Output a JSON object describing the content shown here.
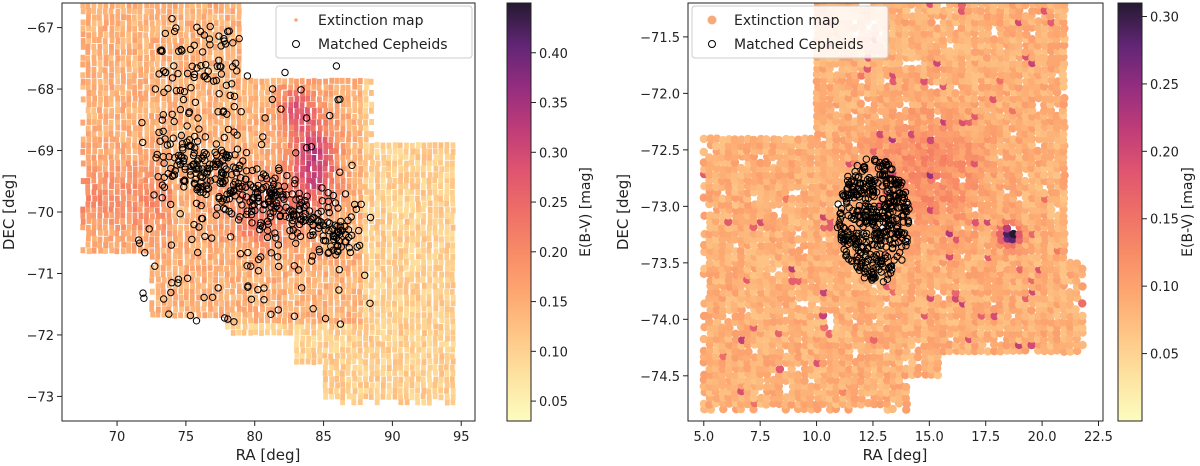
{
  "chart_data": [
    {
      "type": "scatter",
      "panel": "left",
      "xlabel": "RA [deg]",
      "ylabel": "DEC [deg]",
      "xlim": [
        66.0,
        96.0
      ],
      "ylim": [
        -73.4,
        -66.6
      ],
      "xticks": [
        70,
        75,
        80,
        85,
        90,
        95
      ],
      "yticks": [
        -67,
        -68,
        -69,
        -70,
        -71,
        -72,
        -73
      ],
      "xtick_labels": [
        "70",
        "75",
        "80",
        "85",
        "90",
        "95"
      ],
      "ytick_labels": [
        "−67",
        "−68",
        "−69",
        "−70",
        "−71",
        "−72",
        "−73"
      ],
      "legend": {
        "position": "top-right",
        "entries": [
          "Extinction map",
          "Matched Cepheids"
        ]
      },
      "colorbar": {
        "label": "E(B-V) [mag]",
        "range": [
          0.03,
          0.45
        ],
        "ticks": [
          0.05,
          0.1,
          0.15,
          0.2,
          0.25,
          0.3,
          0.35,
          0.4
        ],
        "tick_labels": [
          "0.05",
          "0.10",
          "0.15",
          "0.20",
          "0.25",
          "0.30",
          "0.35",
          "0.40"
        ]
      },
      "series": [
        {
          "name": "Extinction map",
          "marker": "small filled hexagon cells",
          "typical_value": 0.15,
          "footprint_ra_dec": [
            [
              67.5,
              -66.5
            ],
            [
              79.0,
              -66.5
            ],
            [
              79.0,
              -67.8
            ],
            [
              88.5,
              -67.8
            ],
            [
              88.5,
              -68.9
            ],
            [
              94.5,
              -68.9
            ],
            [
              94.5,
              -73.1
            ],
            [
              85.0,
              -73.1
            ],
            [
              85.0,
              -72.5
            ],
            [
              83.0,
              -72.5
            ],
            [
              83.0,
              -72.0
            ],
            [
              78.0,
              -72.0
            ],
            [
              78.0,
              -71.7
            ],
            [
              72.5,
              -71.7
            ],
            [
              72.5,
              -70.7
            ],
            [
              67.5,
              -70.7
            ]
          ]
        },
        {
          "name": "Matched Cepheids",
          "marker": "open circle",
          "n_points": 560,
          "bar_center": [
            80.5,
            -69.8
          ],
          "bar_extent": [
            [
              72,
              -68.9
            ],
            [
              88,
              -71.0
            ]
          ]
        }
      ]
    },
    {
      "type": "scatter",
      "panel": "right",
      "xlabel": "RA [deg]",
      "ylabel": "DEC [deg]",
      "xlim": [
        4.3,
        22.7
      ],
      "ylim": [
        -74.9,
        -71.2
      ],
      "xticks": [
        5.0,
        7.5,
        10.0,
        12.5,
        15.0,
        17.5,
        20.0,
        22.5
      ],
      "yticks": [
        -71.5,
        -72.0,
        -72.5,
        -73.0,
        -73.5,
        -74.0,
        -74.5
      ],
      "xtick_labels": [
        "5.0",
        "7.5",
        "10.0",
        "12.5",
        "15.0",
        "17.5",
        "20.0",
        "22.5"
      ],
      "ytick_labels": [
        "−71.5",
        "−72.0",
        "−72.5",
        "−73.0",
        "−73.5",
        "−74.0",
        "−74.5"
      ],
      "legend": {
        "position": "top-left",
        "entries": [
          "Extinction map",
          "Matched Cepheids"
        ]
      },
      "colorbar": {
        "label": "E(B-V) [mag]",
        "range": [
          0.0,
          0.31
        ],
        "ticks": [
          0.05,
          0.1,
          0.15,
          0.2,
          0.25,
          0.3
        ],
        "tick_labels": [
          "0.05",
          "0.10",
          "0.15",
          "0.20",
          "0.25",
          "0.30"
        ]
      },
      "series": [
        {
          "name": "Extinction map",
          "marker": "large filled circle cells",
          "typical_value": 0.08,
          "footprint_ra_dec": [
            [
              5.0,
              -72.4
            ],
            [
              10.0,
              -72.4
            ],
            [
              10.0,
              -71.15
            ],
            [
              21.0,
              -71.15
            ],
            [
              21.0,
              -73.5
            ],
            [
              21.8,
              -73.5
            ],
            [
              21.8,
              -74.3
            ],
            [
              15.5,
              -74.3
            ],
            [
              15.5,
              -74.5
            ],
            [
              14.0,
              -74.5
            ],
            [
              14.0,
              -74.8
            ],
            [
              5.0,
              -74.8
            ]
          ]
        },
        {
          "name": "Matched Cepheids",
          "marker": "open circle",
          "n_points": 430,
          "cluster_center": [
            12.5,
            -73.1
          ],
          "cluster_extent": [
            [
              10.9,
              -72.55
            ],
            [
              14.3,
              -73.7
            ]
          ]
        },
        {
          "name": "Extinction peak",
          "position": [
            18.6,
            -73.25
          ],
          "value": 0.3
        }
      ]
    }
  ]
}
